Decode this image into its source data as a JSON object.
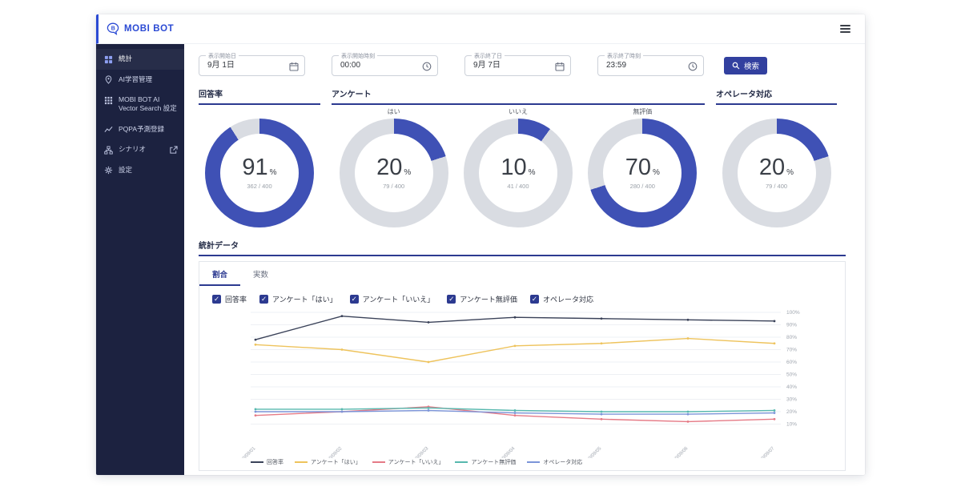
{
  "colors": {
    "brand": "#2b4ad4",
    "accent": "#2c3a90",
    "donut_fill": "#3f51b5",
    "donut_track": "#d9dce2"
  },
  "header": {
    "logo_text": "MOBI BOT"
  },
  "sidebar": {
    "items": [
      {
        "label": "統計",
        "active": true
      },
      {
        "label": "AI学習管理"
      },
      {
        "label": "MOBI BOT AI Vector Search 設定"
      },
      {
        "label": "PQPA予測登録"
      },
      {
        "label": "シナリオ",
        "external": true
      },
      {
        "label": "設定"
      }
    ]
  },
  "filters": {
    "fields": [
      {
        "label": "表示開始日",
        "value": "9月 1日",
        "icon": "calendar-icon"
      },
      {
        "label": "表示開始時刻",
        "value": "00:00",
        "icon": "clock-icon"
      },
      {
        "label": "表示終了日",
        "value": "9月 7日",
        "icon": "calendar-icon"
      },
      {
        "label": "表示終了時刻",
        "value": "23:59",
        "icon": "clock-icon"
      }
    ],
    "search_label": "検索"
  },
  "donuts": {
    "sections": [
      {
        "title": "回答率",
        "items": [
          {
            "sublabel": "",
            "value": "91",
            "unit": "%",
            "fraction": "362 / 400",
            "percent": 91
          }
        ]
      },
      {
        "title": "アンケート",
        "items": [
          {
            "sublabel": "はい",
            "value": "20",
            "unit": "%",
            "fraction": "79 / 400",
            "percent": 20
          },
          {
            "sublabel": "いいえ",
            "value": "10",
            "unit": "%",
            "fraction": "41 / 400",
            "percent": 10
          },
          {
            "sublabel": "無評価",
            "value": "70",
            "unit": "%",
            "fraction": "280 / 400",
            "percent": 70
          }
        ]
      },
      {
        "title": "オペレータ対応",
        "items": [
          {
            "sublabel": "",
            "value": "20",
            "unit": "%",
            "fraction": "79 / 400",
            "percent": 20
          }
        ]
      }
    ]
  },
  "stats": {
    "title": "統計データ",
    "tabs": [
      {
        "label": "割合",
        "active": true
      },
      {
        "label": "実数",
        "active": false
      }
    ],
    "checkboxes": [
      {
        "label": "回答率",
        "checked": true
      },
      {
        "label": "アンケート「はい」",
        "checked": true
      },
      {
        "label": "アンケート「いいえ」",
        "checked": true
      },
      {
        "label": "アンケート無評価",
        "checked": true
      },
      {
        "label": "オペレータ対応",
        "checked": true
      }
    ]
  },
  "chart_data": {
    "type": "line",
    "x": [
      "2020/09/01",
      "2020/09/02",
      "2020/09/03",
      "2020/09/04",
      "2020/09/05",
      "2020/09/06",
      "2020/09/07"
    ],
    "series": [
      {
        "name": "回答率",
        "color": "#3a4259",
        "values": [
          78,
          97,
          92,
          96,
          95,
          94,
          93
        ]
      },
      {
        "name": "アンケート「はい」",
        "color": "#eec35c",
        "values": [
          74,
          70,
          60,
          73,
          75,
          79,
          75
        ]
      },
      {
        "name": "アンケート「いいえ」",
        "color": "#e57a86",
        "values": [
          17,
          20,
          24,
          17,
          14,
          12,
          14
        ]
      },
      {
        "name": "アンケート無評価",
        "color": "#57b8ae",
        "values": [
          22,
          22,
          23,
          21,
          20,
          20,
          21
        ]
      },
      {
        "name": "オペレータ対応",
        "color": "#7b94d8",
        "values": [
          20,
          20,
          21,
          19,
          18,
          18,
          19
        ]
      }
    ],
    "ylim": [
      0,
      100
    ],
    "yticks": [
      "100%",
      "90%",
      "80%",
      "70%",
      "60%",
      "50%",
      "40%",
      "30%",
      "20%",
      "10%"
    ],
    "grid": true,
    "legend_position": "bottom"
  }
}
